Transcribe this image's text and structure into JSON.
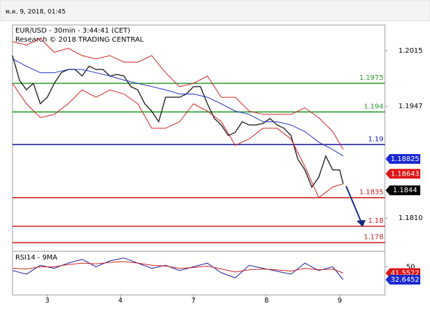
{
  "header": {
    "timestamp": "พ.ค. 9, 2018, 01:45"
  },
  "chart_data": [
    {
      "type": "line",
      "title": "EUR/USD - 30min - 3:44:41 (CET)",
      "subtitle": "Research © 2018 TRADING CENTRAL",
      "xlim": [
        0,
        107
      ],
      "ylim": [
        1.17694,
        1.20465
      ],
      "yticks": [
        {
          "value": 1.181,
          "label": "1.1810"
        },
        1.1947,
        1.2015
      ],
      "series": [
        {
          "color": "#222222",
          "x": [
            0,
            2,
            4,
            6,
            8,
            10,
            12,
            14,
            16,
            18,
            20,
            22,
            24,
            26,
            28,
            30,
            32,
            34,
            36,
            38,
            40,
            42,
            44,
            46,
            48,
            50,
            52,
            54,
            56,
            58,
            60,
            62,
            64,
            66,
            68,
            70,
            72,
            74,
            76,
            78,
            80,
            82,
            84,
            86,
            88,
            90,
            92,
            94,
            95
          ],
          "values": [
            1.2009,
            1.1979,
            1.1967,
            1.1975,
            1.195,
            1.1958,
            1.1975,
            1.1988,
            1.1992,
            1.1992,
            1.1984,
            1.1996,
            1.1992,
            1.1992,
            1.1984,
            1.1986,
            1.1984,
            1.1971,
            1.1967,
            1.195,
            1.1941,
            1.1928,
            1.1958,
            1.1958,
            1.1958,
            1.1962,
            1.1971,
            1.1971,
            1.195,
            1.1932,
            1.1924,
            1.1911,
            1.1915,
            1.1928,
            1.1924,
            1.1924,
            1.1926,
            1.1932,
            1.1924,
            1.192,
            1.1911,
            1.1882,
            1.1869,
            1.1848,
            1.186,
            1.1886,
            1.1869,
            1.1869,
            1.1852
          ]
        },
        {
          "color": "#cc2020",
          "x": [
            0,
            4,
            8,
            12,
            16,
            20,
            24,
            28,
            32,
            36,
            40,
            44,
            48,
            52,
            56,
            60,
            64,
            68,
            72,
            76,
            80,
            84,
            88,
            92,
            95
          ],
          "values": [
            1.2026,
            1.2022,
            1.203,
            1.2013,
            1.2018,
            1.2009,
            1.2005,
            1.2009,
            1.2001,
            1.2001,
            1.2009,
            1.1988,
            1.1971,
            1.1975,
            1.1984,
            1.1958,
            1.1958,
            1.1941,
            1.1937,
            1.1937,
            1.1937,
            1.1945,
            1.1933,
            1.1916,
            1.1894
          ]
        },
        {
          "color": "#cc2020",
          "x": [
            0,
            4,
            8,
            12,
            16,
            20,
            24,
            28,
            32,
            36,
            40,
            44,
            48,
            52,
            56,
            60,
            64,
            68,
            72,
            76,
            80,
            84,
            88,
            92,
            95
          ],
          "values": [
            1.1975,
            1.195,
            1.1933,
            1.1937,
            1.195,
            1.1967,
            1.1958,
            1.1967,
            1.1962,
            1.195,
            1.192,
            1.192,
            1.1928,
            1.195,
            1.1941,
            1.1928,
            1.1899,
            1.1907,
            1.192,
            1.192,
            1.1907,
            1.1873,
            1.1835,
            1.1848,
            1.1852
          ]
        },
        {
          "color": "#2030c0",
          "x": [
            0,
            4,
            8,
            12,
            16,
            20,
            24,
            28,
            32,
            36,
            40,
            44,
            48,
            52,
            56,
            60,
            64,
            68,
            72,
            76,
            80,
            84,
            88,
            92,
            95
          ],
          "values": [
            1.2005,
            1.1996,
            1.1988,
            1.1988,
            1.1992,
            1.1992,
            1.1988,
            1.1984,
            1.1979,
            1.1975,
            1.1971,
            1.1967,
            1.1962,
            1.1962,
            1.1958,
            1.195,
            1.1941,
            1.1937,
            1.1928,
            1.1928,
            1.1924,
            1.1916,
            1.1903,
            1.1894,
            1.1886
          ]
        }
      ],
      "levels": [
        {
          "value": 1.1975,
          "color": "#2a9a2a"
        },
        {
          "value": 1.194,
          "color": "#2a9a2a"
        },
        {
          "value": 1.19,
          "color": "#1a1aa0"
        },
        {
          "value": 1.1835,
          "color": "#cc2020"
        },
        {
          "value": 1.18,
          "color": "#cc2020"
        },
        {
          "value": 1.178,
          "color": "#cc2020"
        }
      ],
      "price_tags": [
        {
          "value": 1.18825,
          "color": "#1a2ad0"
        },
        {
          "value": 1.18643,
          "color": "#dd1515"
        },
        {
          "value": 1.1844,
          "color": "#000000"
        }
      ]
    },
    {
      "type": "line",
      "title": "RSI14 - 9MA",
      "xlim": [
        0,
        107
      ],
      "ylim": [
        12,
        71
      ],
      "yticks": [
        50
      ],
      "xticks": [
        {
          "value": 10,
          "label": "3"
        },
        {
          "value": 31,
          "label": "4"
        },
        {
          "value": 52,
          "label": "7"
        },
        {
          "value": 73,
          "label": "8"
        },
        {
          "value": 94,
          "label": "9"
        }
      ],
      "series": [
        {
          "color": "#1a1aa0",
          "x": [
            0,
            4,
            8,
            12,
            16,
            20,
            24,
            28,
            32,
            36,
            40,
            44,
            48,
            52,
            56,
            60,
            64,
            68,
            72,
            76,
            80,
            84,
            88,
            92,
            95
          ],
          "values": [
            45,
            40,
            52,
            48,
            55,
            60,
            50,
            58,
            62,
            55,
            48,
            52,
            45,
            50,
            55,
            42,
            35,
            52,
            48,
            44,
            40,
            55,
            45,
            50,
            32.6452
          ]
        },
        {
          "color": "#cc2020",
          "x": [
            0,
            4,
            8,
            12,
            16,
            20,
            24,
            28,
            32,
            36,
            40,
            44,
            48,
            52,
            56,
            60,
            64,
            68,
            72,
            76,
            80,
            84,
            88,
            92,
            95
          ],
          "values": [
            48,
            47,
            50,
            50,
            53,
            55,
            54,
            56,
            57,
            55,
            52,
            51,
            48,
            49,
            51,
            47,
            43,
            46,
            47,
            46,
            44,
            48,
            46,
            47,
            41.5522
          ]
        }
      ],
      "price_tags": [
        {
          "value": 41.5522,
          "color": "#dd1515"
        },
        {
          "value": 32.6452,
          "color": "#1a2ad0"
        }
      ]
    }
  ]
}
